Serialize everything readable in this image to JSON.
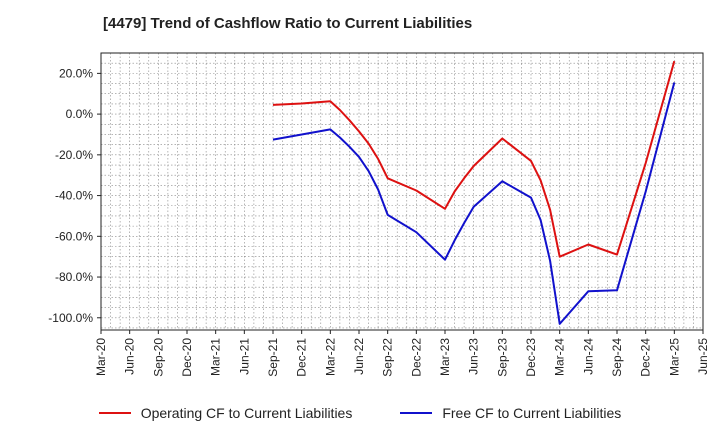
{
  "chart_data": {
    "type": "line",
    "title": "[4479]  Trend of Cashflow Ratio to Current Liabilities",
    "xlabel": "",
    "ylabel": "",
    "x_ticks": [
      "Mar-20",
      "Jun-20",
      "Sep-20",
      "Dec-20",
      "Mar-21",
      "Jun-21",
      "Sep-21",
      "Dec-21",
      "Mar-22",
      "Jun-22",
      "Sep-22",
      "Dec-22",
      "Mar-23",
      "Jun-23",
      "Sep-23",
      "Dec-23",
      "Mar-24",
      "Jun-24",
      "Sep-24",
      "Dec-24",
      "Mar-25",
      "Jun-25"
    ],
    "y_ticks": [
      "20.0%",
      "0.0%",
      "-20.0%",
      "-40.0%",
      "-60.0%",
      "-80.0%",
      "-100.0%"
    ],
    "y_tick_values": [
      20,
      0,
      -20,
      -40,
      -60,
      -80,
      -100
    ],
    "ylim": [
      -106,
      30
    ],
    "grid": true,
    "legend_position": "bottom",
    "series": [
      {
        "name": "Operating CF to Current Liabilities",
        "color": "#dd1111",
        "points": [
          [
            "Sep-21",
            4.5
          ],
          [
            "Dec-21",
            5.2
          ],
          [
            "Mar-22",
            6.3
          ],
          [
            "Apr-22",
            2.0
          ],
          [
            "May-22",
            -3.0
          ],
          [
            "Jun-22",
            -8.5
          ],
          [
            "Jul-22",
            -14.5
          ],
          [
            "Aug-22",
            -22.0
          ],
          [
            "Sep-22",
            -31.5
          ],
          [
            "Dec-22",
            -37.5
          ],
          [
            "Mar-23",
            -46.5
          ],
          [
            "Apr-23",
            -38.0
          ],
          [
            "May-23",
            -31.5
          ],
          [
            "Jun-23",
            -25.5
          ],
          [
            "Sep-23",
            -12.0
          ],
          [
            "Dec-23",
            -23.0
          ],
          [
            "Jan-24",
            -32.5
          ],
          [
            "Feb-24",
            -47.0
          ],
          [
            "Mar-24",
            -70.0
          ],
          [
            "Jun-24",
            -64.0
          ],
          [
            "Sep-24",
            -69.0
          ],
          [
            "Dec-24",
            -24.0
          ],
          [
            "Mar-25",
            26.0
          ]
        ]
      },
      {
        "name": "Free CF to Current Liabilities",
        "color": "#1111cc",
        "points": [
          [
            "Sep-21",
            -12.5
          ],
          [
            "Dec-21",
            -10.0
          ],
          [
            "Mar-22",
            -7.5
          ],
          [
            "Apr-22",
            -11.5
          ],
          [
            "May-22",
            -16.0
          ],
          [
            "Jun-22",
            -21.0
          ],
          [
            "Jul-22",
            -28.0
          ],
          [
            "Aug-22",
            -37.0
          ],
          [
            "Sep-22",
            -49.5
          ],
          [
            "Dec-22",
            -58.0
          ],
          [
            "Mar-23",
            -71.5
          ],
          [
            "Apr-23",
            -62.0
          ],
          [
            "May-23",
            -53.5
          ],
          [
            "Jun-23",
            -45.5
          ],
          [
            "Sep-23",
            -33.0
          ],
          [
            "Dec-23",
            -41.0
          ],
          [
            "Jan-24",
            -52.0
          ],
          [
            "Feb-24",
            -72.0
          ],
          [
            "Mar-24",
            -103.0
          ],
          [
            "Jun-24",
            -87.0
          ],
          [
            "Sep-24",
            -86.5
          ],
          [
            "Dec-24",
            -38.0
          ],
          [
            "Mar-25",
            15.5
          ]
        ]
      }
    ]
  }
}
